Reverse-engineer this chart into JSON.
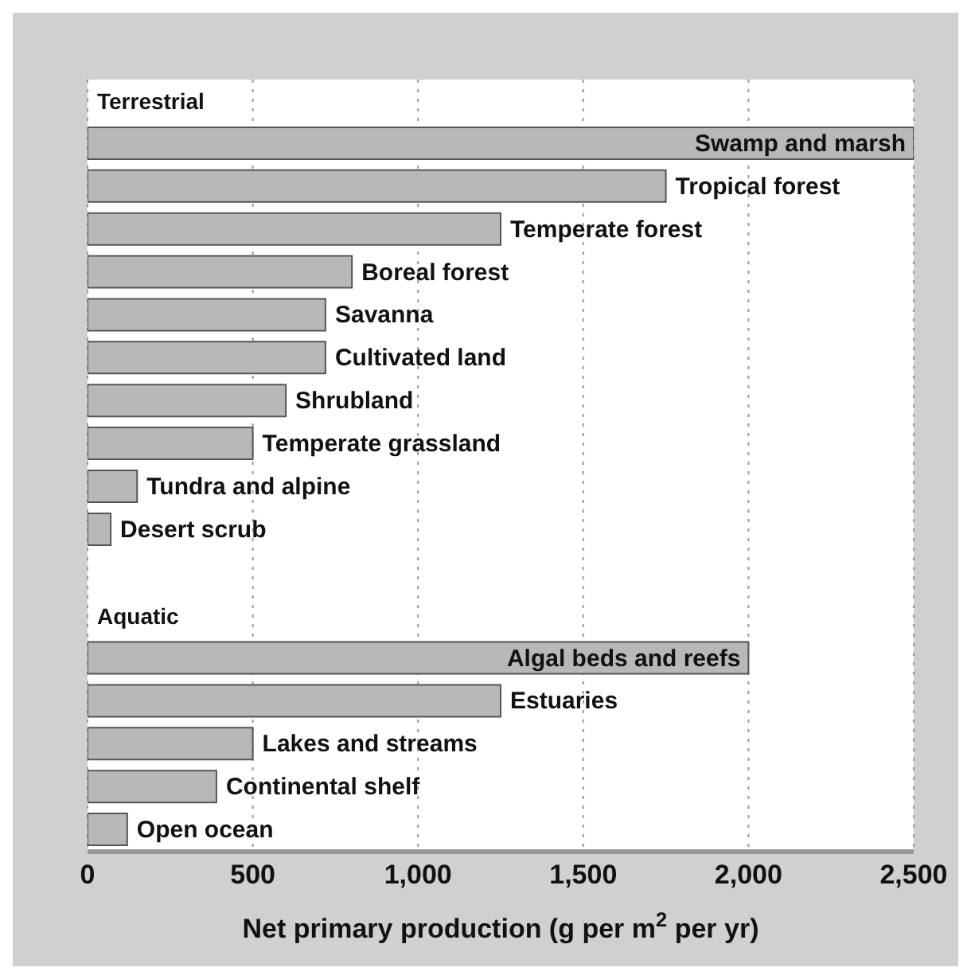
{
  "chart_data": {
    "type": "bar",
    "orientation": "horizontal",
    "categories": [
      "Terrestrial",
      "Swamp and marsh",
      "Tropical forest",
      "Temperate forest",
      "Boreal forest",
      "Savanna",
      "Cultivated land",
      "Shrubland",
      "Temperate grassland",
      "Tundra and alpine",
      "Desert scrub",
      null,
      "Aquatic",
      "Algal beds and reefs",
      "Estuaries",
      "Lakes and streams",
      "Continental shelf",
      "Open ocean"
    ],
    "values": [
      null,
      2500,
      1750,
      1250,
      800,
      720,
      720,
      600,
      500,
      150,
      70,
      null,
      null,
      2000,
      1250,
      500,
      390,
      120
    ],
    "color": "#b8b8b8",
    "xlabel": "Net primary production (g per m$^{2}$ per yr)",
    "xlim": [
      0,
      2500
    ],
    "xticks": [
      0,
      {
        "value": 500,
        "label": "500"
      },
      {
        "value": 1000,
        "label": "1,000"
      },
      {
        "value": 1500,
        "label": "1,500"
      },
      {
        "value": 2000,
        "label": "2,000"
      },
      {
        "value": 2500,
        "label": "2,500"
      }
    ],
    "grid": "x",
    "tick_labels": "x"
  }
}
